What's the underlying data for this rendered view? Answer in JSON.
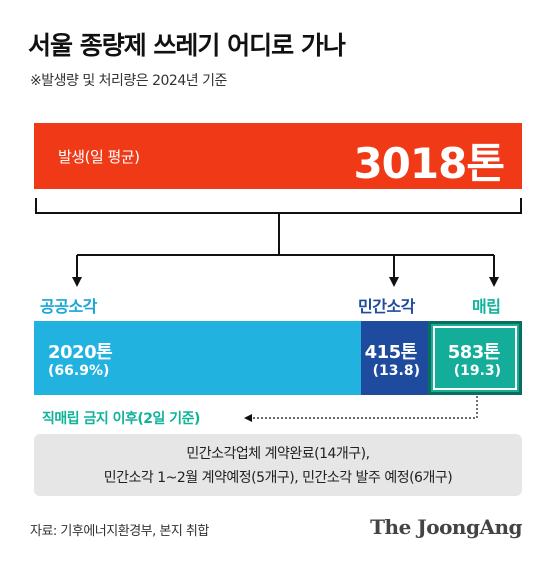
{
  "title": "서울 종량제 쓰레기 어디로 가나",
  "subtitle": "※발생량 및 처리량은 2024년 기준",
  "generation": {
    "label": "발생(일 평균)",
    "value_text": "3018톤"
  },
  "categories": {
    "public": "공공소각",
    "private": "민간소각",
    "landfill": "매립"
  },
  "chart_data": {
    "type": "bar",
    "title": "서울 종량제 쓰레기 어디로 가나",
    "total": {
      "label": "발생(일 평균)",
      "value": 3018,
      "unit": "톤"
    },
    "categories": [
      "공공소각",
      "민간소각",
      "매립"
    ],
    "values": [
      2020,
      415,
      583
    ],
    "shares_percent": [
      66.9,
      13.8,
      19.3
    ],
    "value_labels": [
      "2020톤",
      "415톤",
      "583톤"
    ],
    "share_labels": [
      "(66.9%)",
      "(13.8)",
      "(19.3)"
    ],
    "colors": [
      "#22b2e0",
      "#1e4b9e",
      "#14ad9a"
    ],
    "total_color": "#f03a17"
  },
  "after_ban": {
    "label": "직매립 금지 이후(2일 기준)",
    "notes": [
      "민간소각업체 계약완료(14개구),",
      "민간소각 1~2월 계약예정(5개구), 민간소각 발주 예정(6개구)"
    ]
  },
  "source": "자료: 기후에너지환경부, 본지 취합",
  "logo": "The JoongAng"
}
